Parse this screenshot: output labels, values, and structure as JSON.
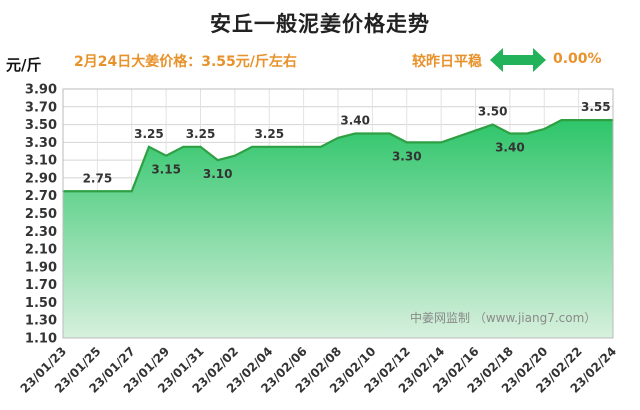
{
  "header": {
    "title": "安丘一般泥姜价格走势",
    "unit": "元/斤",
    "price_info": "2月24日大姜价格：3.55元/斤左右",
    "compare_label": "较昨日平稳",
    "change": "0.00%"
  },
  "watermark": "中姜网监制 （www.jiang7.com）",
  "colors": {
    "accent": "#e8922c",
    "line": "#2ea043",
    "area_top": "#2ec56a",
    "area_bottom": "#d7f0dd",
    "arrow": "#22b35a"
  },
  "icons": {
    "change_arrow": "double-arrow-icon"
  },
  "chart_data": {
    "type": "area",
    "title": "安丘一般泥姜价格走势",
    "ylabel": "元/斤",
    "xlabel": "",
    "ylim": [
      1.1,
      3.9
    ],
    "yticks": [
      "1.10",
      "1.30",
      "1.50",
      "1.70",
      "1.90",
      "2.10",
      "2.30",
      "2.50",
      "2.70",
      "2.90",
      "3.10",
      "3.30",
      "3.50",
      "3.70",
      "3.90"
    ],
    "x_tick_labels": [
      "23/01/23",
      "23/01/25",
      "23/01/27",
      "23/01/29",
      "23/01/31",
      "23/02/02",
      "23/02/04",
      "23/02/06",
      "23/02/08",
      "23/02/10",
      "23/02/12",
      "23/02/14",
      "23/02/16",
      "23/02/18",
      "23/02/20",
      "23/02/22",
      "23/02/24"
    ],
    "grid": true,
    "legend": "none",
    "points": [
      {
        "x": "23/01/23",
        "y": 2.75
      },
      {
        "x": "23/01/27",
        "y": 2.75
      },
      {
        "x": "23/01/28",
        "y": 3.25
      },
      {
        "x": "23/01/29",
        "y": 3.15
      },
      {
        "x": "23/01/30",
        "y": 3.25
      },
      {
        "x": "23/01/31",
        "y": 3.25
      },
      {
        "x": "23/02/01",
        "y": 3.1
      },
      {
        "x": "23/02/02",
        "y": 3.15
      },
      {
        "x": "23/02/03",
        "y": 3.25
      },
      {
        "x": "23/02/07",
        "y": 3.25
      },
      {
        "x": "23/02/08",
        "y": 3.35
      },
      {
        "x": "23/02/09",
        "y": 3.4
      },
      {
        "x": "23/02/11",
        "y": 3.4
      },
      {
        "x": "23/02/12",
        "y": 3.3
      },
      {
        "x": "23/02/14",
        "y": 3.3
      },
      {
        "x": "23/02/17",
        "y": 3.5
      },
      {
        "x": "23/02/18",
        "y": 3.4
      },
      {
        "x": "23/02/19",
        "y": 3.4
      },
      {
        "x": "23/02/20",
        "y": 3.45
      },
      {
        "x": "23/02/21",
        "y": 3.55
      },
      {
        "x": "23/02/24",
        "y": 3.55
      }
    ],
    "data_labels": [
      {
        "x": "23/01/25",
        "y": 2.75,
        "text": "2.75"
      },
      {
        "x": "23/01/28",
        "y": 3.25,
        "text": "3.25"
      },
      {
        "x": "23/01/29",
        "y": 3.15,
        "text": "3.15"
      },
      {
        "x": "23/01/31",
        "y": 3.25,
        "text": "3.25"
      },
      {
        "x": "23/02/01",
        "y": 3.1,
        "text": "3.10"
      },
      {
        "x": "23/02/04",
        "y": 3.25,
        "text": "3.25"
      },
      {
        "x": "23/02/09",
        "y": 3.4,
        "text": "3.40"
      },
      {
        "x": "23/02/12",
        "y": 3.3,
        "text": "3.30"
      },
      {
        "x": "23/02/17",
        "y": 3.5,
        "text": "3.50"
      },
      {
        "x": "23/02/18",
        "y": 3.4,
        "text": "3.40"
      },
      {
        "x": "23/02/23",
        "y": 3.55,
        "text": "3.55"
      }
    ]
  }
}
